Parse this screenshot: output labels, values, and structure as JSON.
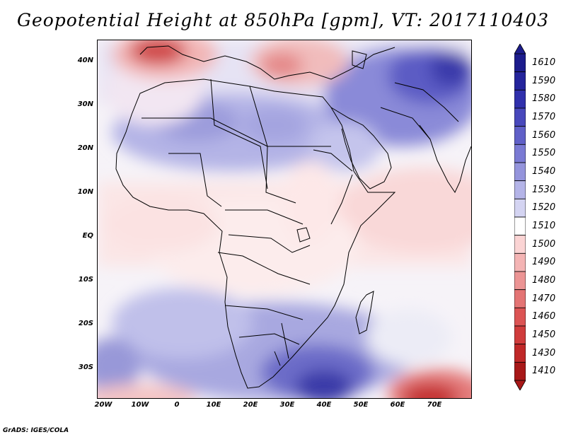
{
  "title": "Geopotential Height at 850hPa [gpm], VT: 2017110403",
  "footer": "GrADS: IGES/COLA",
  "map": {
    "variable": "Geopotential Height",
    "level": "850hPa",
    "units": "gpm",
    "valid_time": "2017110403",
    "lat_labels": [
      "40N",
      "30N",
      "20N",
      "10N",
      "EQ",
      "10S",
      "20S",
      "30S"
    ],
    "lon_labels": [
      "20W",
      "10W",
      "0",
      "10E",
      "20E",
      "30E",
      "40E",
      "50E",
      "60E",
      "70E"
    ]
  },
  "colorbar": {
    "levels": [
      "1610",
      "1590",
      "1580",
      "1570",
      "1560",
      "1550",
      "1540",
      "1530",
      "1520",
      "1510",
      "1500",
      "1490",
      "1480",
      "1470",
      "1460",
      "1450",
      "1430",
      "1410"
    ],
    "colors": [
      "#1c1c8c",
      "#24249c",
      "#3030ac",
      "#4848bc",
      "#6060c8",
      "#7a7ad4",
      "#9494dc",
      "#b4b4e8",
      "#d4d4f2",
      "#ffffff",
      "#fbd4d4",
      "#f4b4b4",
      "#ec9494",
      "#e47474",
      "#dc5454",
      "#d03c3c",
      "#c02828",
      "#a81818"
    ]
  }
}
